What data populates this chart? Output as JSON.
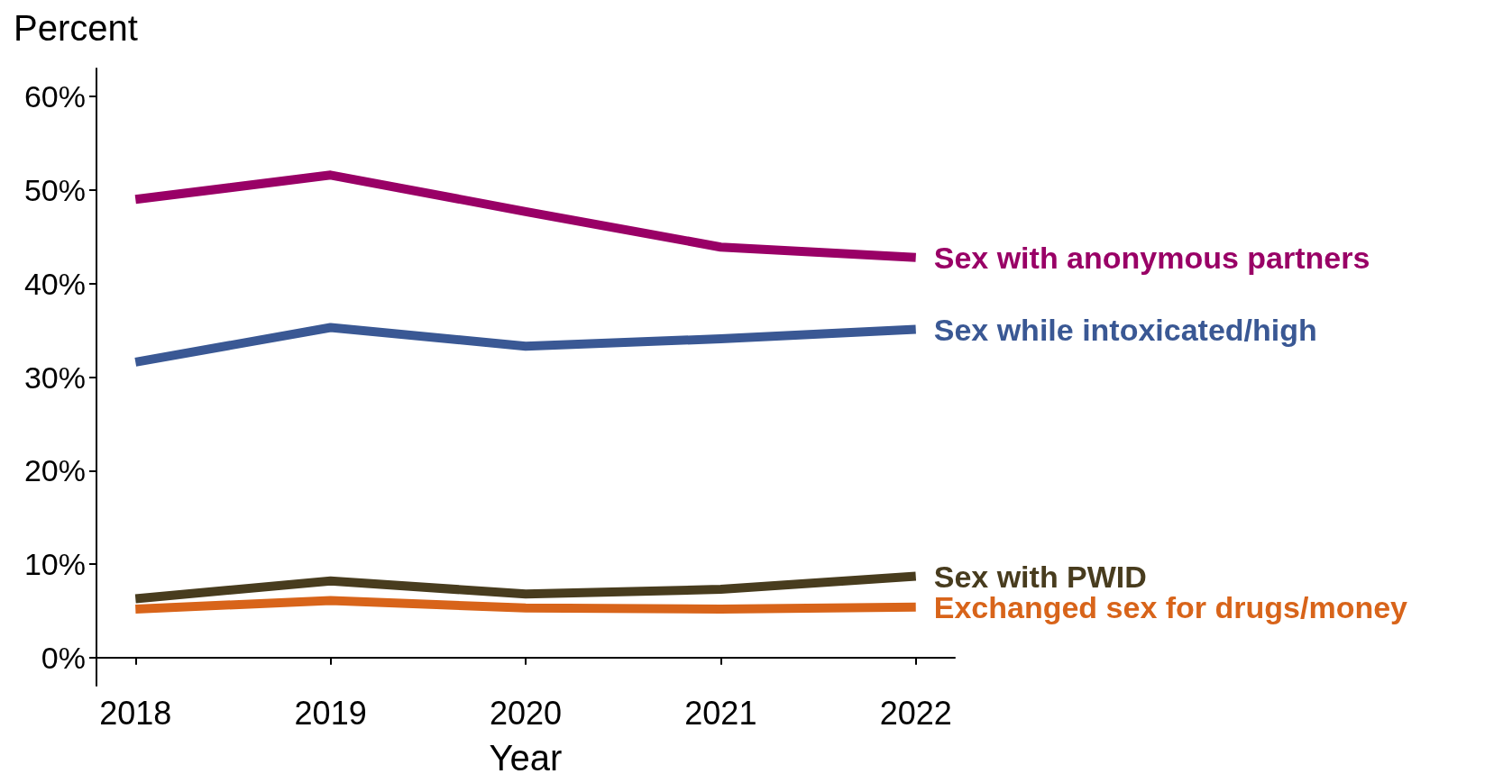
{
  "chart_data": {
    "type": "line",
    "ylabel": "Percent",
    "xlabel": "Year",
    "x": [
      2018,
      2019,
      2020,
      2021,
      2022
    ],
    "series": [
      {
        "name": "Sex with anonymous partners",
        "color": "#990066",
        "values": [
          49.0,
          51.6,
          47.7,
          43.9,
          42.8
        ]
      },
      {
        "name": "Sex while intoxicated/high",
        "color": "#3a5894",
        "values": [
          31.6,
          35.3,
          33.3,
          34.1,
          35.1
        ]
      },
      {
        "name": "Sex with PWID",
        "color": "#483c1e",
        "values": [
          6.3,
          8.2,
          6.8,
          7.3,
          8.7
        ]
      },
      {
        "name": "Exchanged sex for drugs/money",
        "color": "#d8641a",
        "values": [
          5.2,
          6.1,
          5.3,
          5.2,
          5.4
        ]
      }
    ],
    "xlim": [
      2017.8,
      2022.2
    ],
    "xticks": [
      2018,
      2019,
      2020,
      2021,
      2022
    ],
    "ylim": [
      -3,
      63
    ],
    "yticks": [
      {
        "value": 0,
        "label": "0%"
      },
      {
        "value": 10,
        "label": "10%"
      },
      {
        "value": 20,
        "label": "20%"
      },
      {
        "value": 30,
        "label": "30%"
      },
      {
        "value": 40,
        "label": "40%"
      },
      {
        "value": 50,
        "label": "50%"
      },
      {
        "value": 60,
        "label": "60%"
      }
    ],
    "grid": false,
    "marker": "none",
    "line_style": "solid"
  }
}
